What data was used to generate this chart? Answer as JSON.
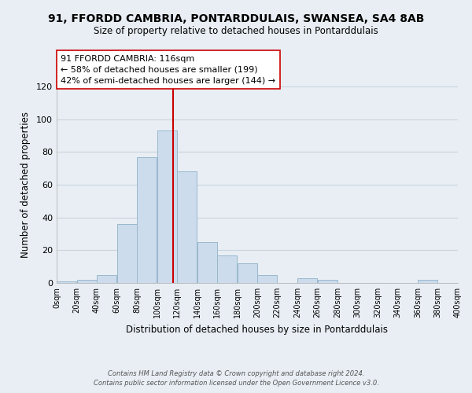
{
  "title": "91, FFORDD CAMBRIA, PONTARDDULAIS, SWANSEA, SA4 8AB",
  "subtitle": "Size of property relative to detached houses in Pontarddulais",
  "xlabel": "Distribution of detached houses by size in Pontarddulais",
  "ylabel": "Number of detached properties",
  "bin_edges": [
    0,
    20,
    40,
    60,
    80,
    100,
    120,
    140,
    160,
    180,
    200,
    220,
    240,
    260,
    280,
    300,
    320,
    340,
    360,
    380,
    400
  ],
  "counts": [
    1,
    2,
    5,
    36,
    77,
    93,
    68,
    25,
    17,
    12,
    5,
    0,
    3,
    2,
    0,
    0,
    0,
    0,
    2,
    0
  ],
  "bar_color": "#ccdcec",
  "bar_edgecolor": "#9ab8cc",
  "property_size": 116,
  "vline_color": "#cc0000",
  "annotation_line1": "91 FFORDD CAMBRIA: 116sqm",
  "annotation_line2": "← 58% of detached houses are smaller (199)",
  "annotation_line3": "42% of semi-detached houses are larger (144) →",
  "annotation_box_edgecolor": "#cc0000",
  "ylim": [
    0,
    120
  ],
  "yticks": [
    0,
    20,
    40,
    60,
    80,
    100,
    120
  ],
  "footer_text": "Contains HM Land Registry data © Crown copyright and database right 2024.\nContains public sector information licensed under the Open Government Licence v3.0.",
  "background_color": "#e8eef4",
  "plot_background_color": "#e8eef4",
  "grid_color": "#c8d4de"
}
